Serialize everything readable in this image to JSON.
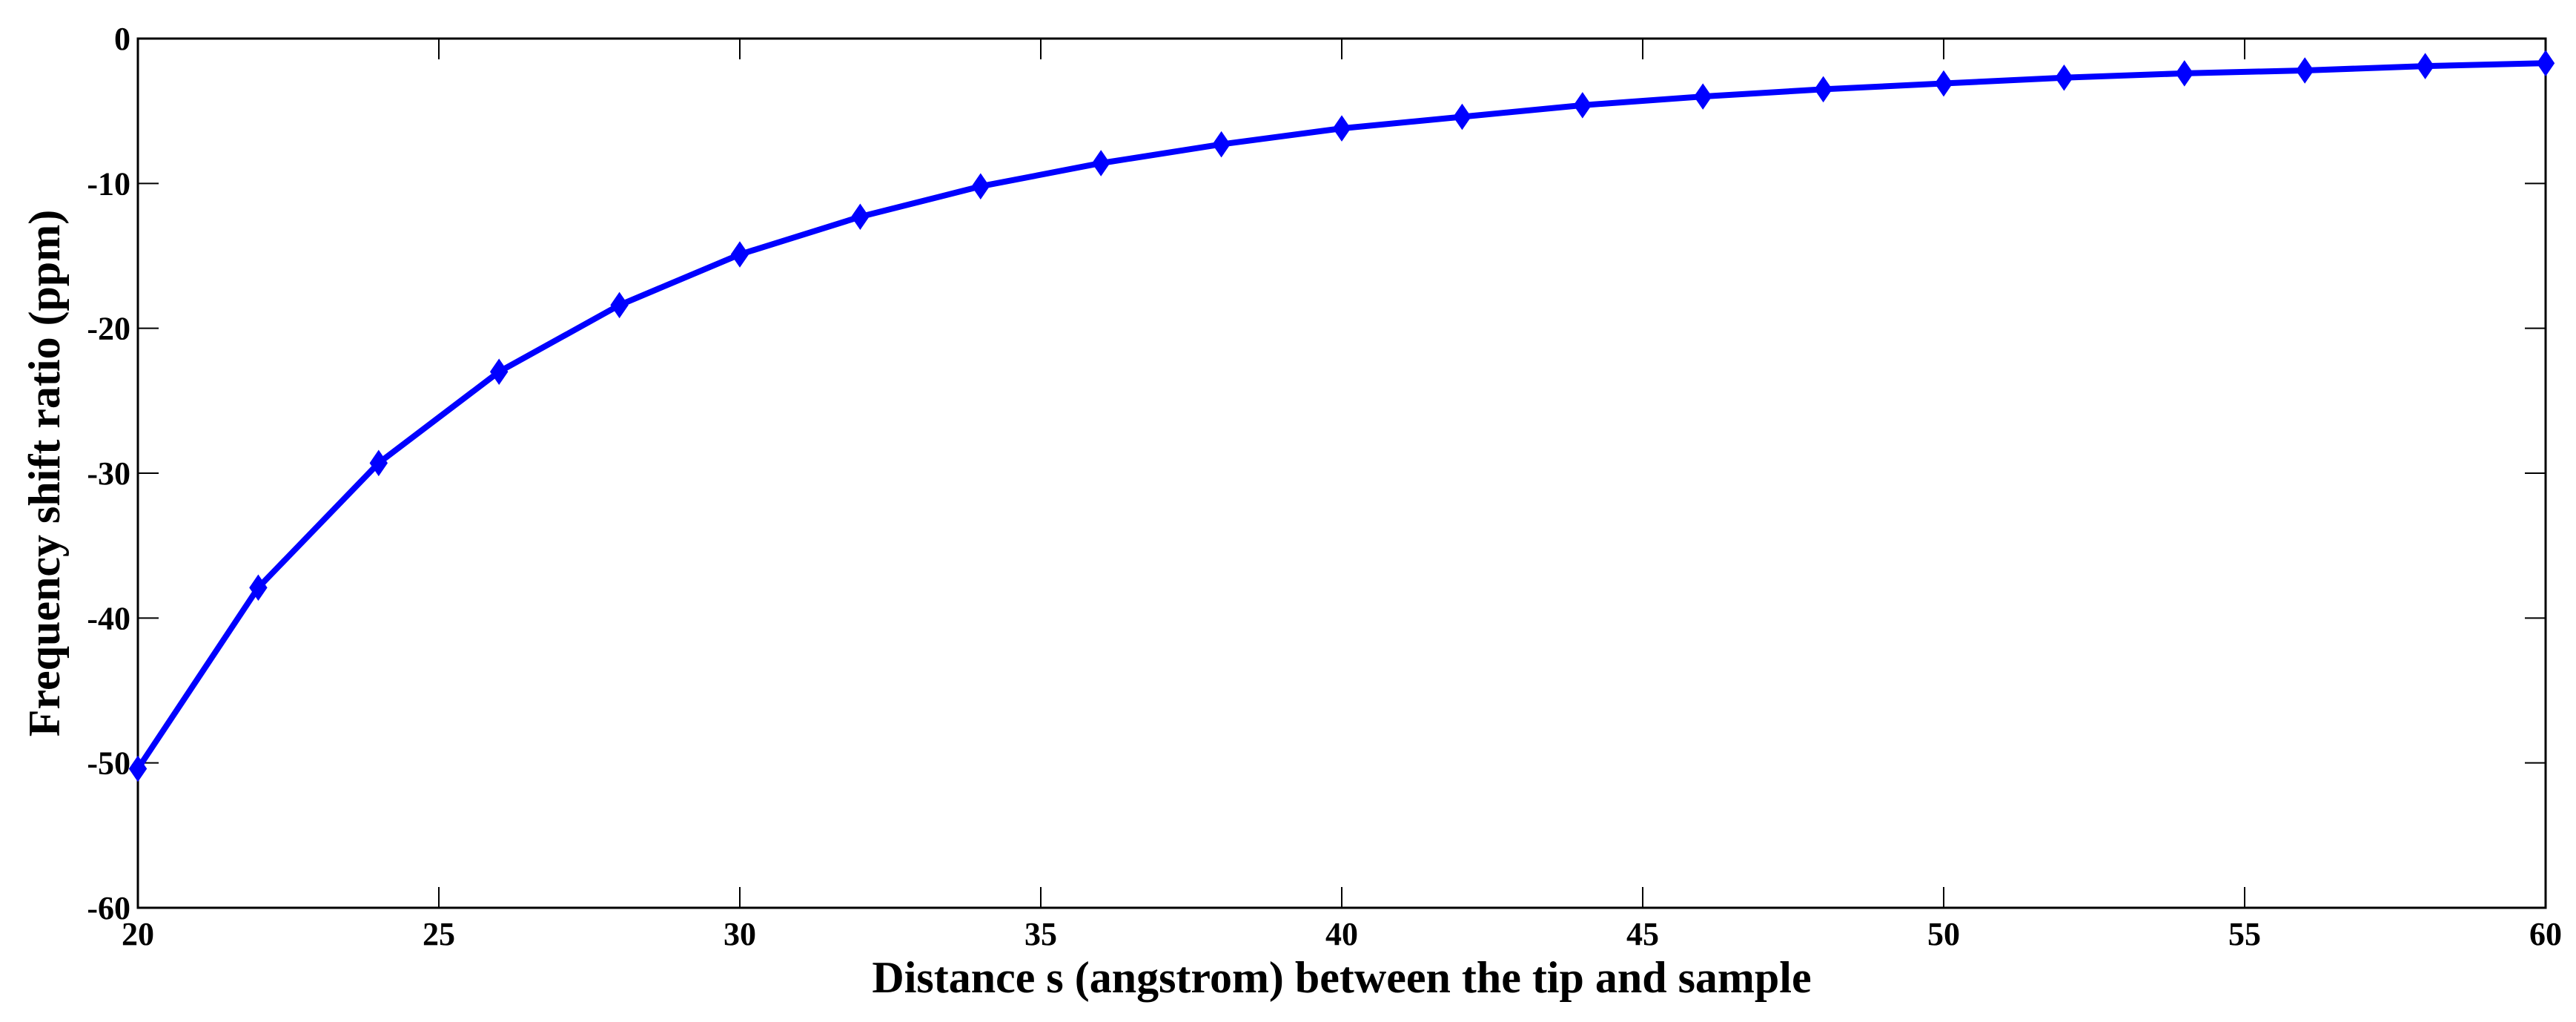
{
  "chart_data": {
    "type": "line",
    "xlabel": "Distance s (angstrom) between the tip and sample",
    "ylabel": "Frequency shift ratio (ppm)",
    "xlim": [
      20,
      60
    ],
    "ylim": [
      -60,
      0
    ],
    "xticks": [
      20,
      25,
      30,
      35,
      40,
      45,
      50,
      55,
      60
    ],
    "yticks": [
      0,
      -10,
      -20,
      -30,
      -40,
      -50,
      -60
    ],
    "grid": false,
    "series": [
      {
        "color": "#0000ff",
        "marker": "diamond",
        "x": [
          20,
          22,
          24,
          26,
          28,
          30,
          32,
          34,
          36,
          38,
          40,
          42,
          44,
          46,
          48,
          50,
          52,
          54,
          56,
          58,
          60
        ],
        "y": [
          -50.4,
          -37.9,
          -29.3,
          -23.0,
          -18.4,
          -14.9,
          -12.3,
          -10.2,
          -8.6,
          -7.3,
          -6.2,
          -5.4,
          -4.6,
          -4.0,
          -3.5,
          -3.1,
          -2.7,
          -2.4,
          -2.2,
          -1.9,
          -1.7
        ]
      }
    ]
  }
}
